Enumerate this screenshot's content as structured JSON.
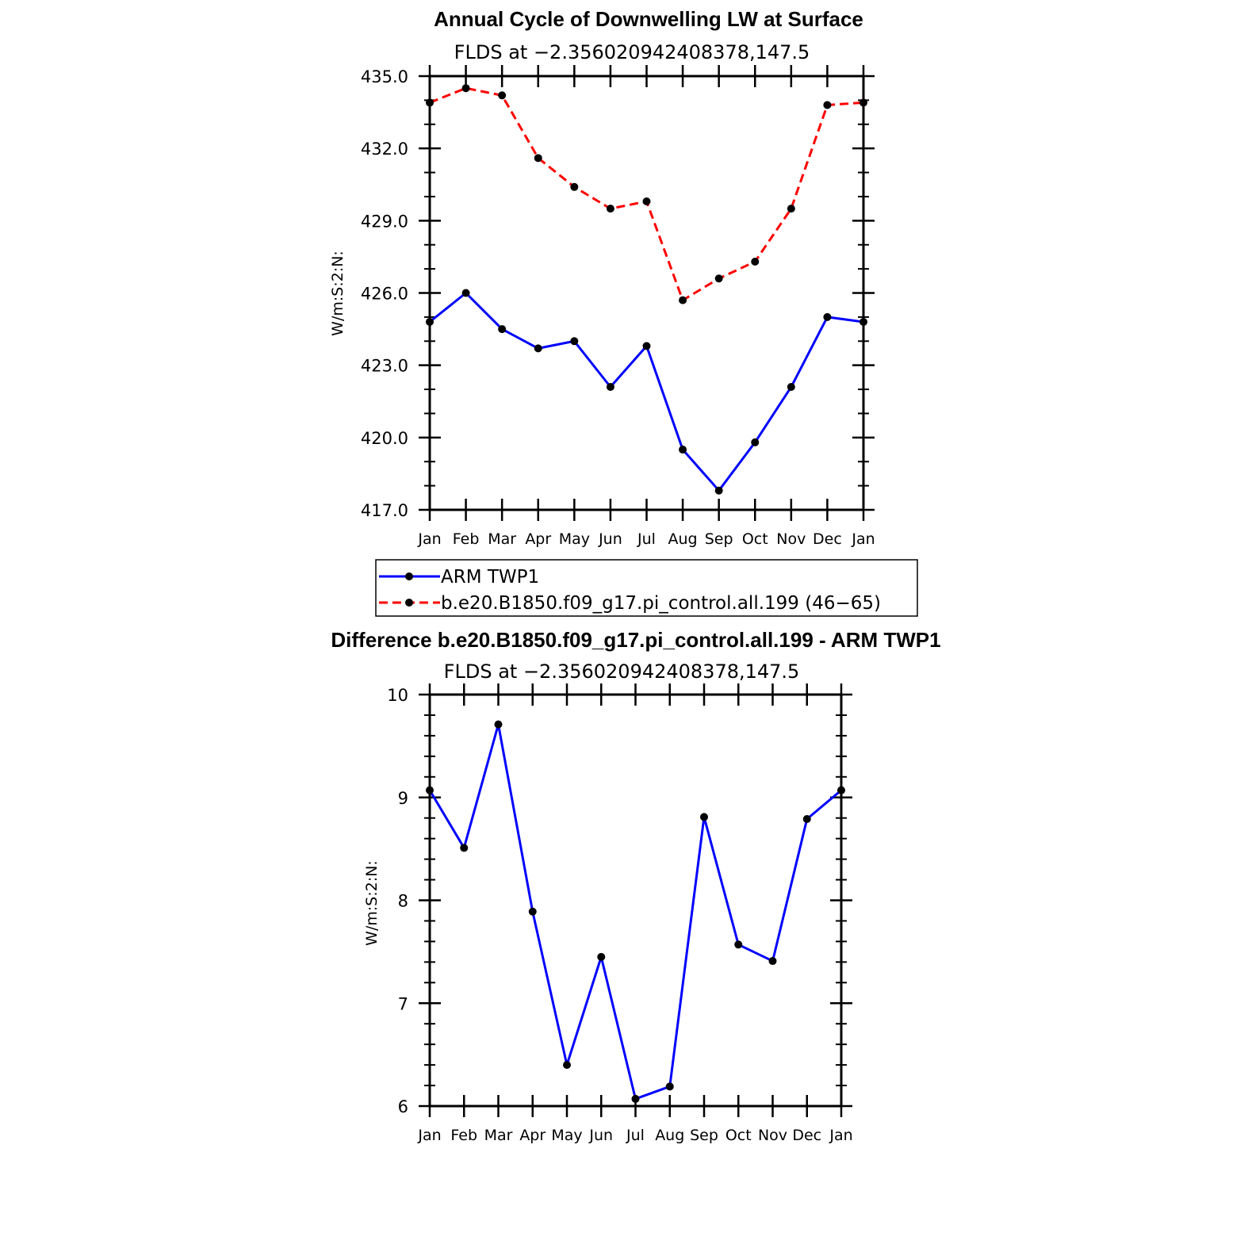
{
  "chart_data": [
    {
      "type": "line",
      "title": "Annual Cycle of Downwelling LW at Surface",
      "subtitle": "FLDS at −2.356020942408378,147.5",
      "ylabel": "W/m:S:2:N:",
      "categories": [
        "Jan",
        "Feb",
        "Mar",
        "Apr",
        "May",
        "Jun",
        "Jul",
        "Aug",
        "Sep",
        "Oct",
        "Nov",
        "Dec",
        "Jan"
      ],
      "ylim": [
        417.0,
        435.0
      ],
      "yticks": [
        "417.0",
        "420.0",
        "423.0",
        "426.0",
        "429.0",
        "432.0",
        "435.0"
      ],
      "series": [
        {
          "name": "ARM TWP1",
          "color": "#0000ff",
          "dash": "solid",
          "values": [
            424.8,
            426.0,
            424.5,
            423.7,
            424.0,
            422.1,
            423.8,
            419.5,
            417.8,
            419.8,
            422.1,
            425.0,
            424.8
          ]
        },
        {
          "name": "b.e20.B1850.f09_g17.pi_control.all.199 (46−65)",
          "color": "#ff0000",
          "dash": "dashed",
          "values": [
            433.9,
            434.5,
            434.2,
            431.6,
            430.4,
            429.5,
            429.8,
            425.7,
            426.6,
            427.3,
            429.5,
            433.8,
            433.9
          ]
        }
      ]
    },
    {
      "type": "line",
      "title": "Difference b.e20.B1850.f09_g17.pi_control.all.199 - ARM TWP1",
      "subtitle": "FLDS at −2.356020942408378,147.5",
      "ylabel": "W/m:S:2:N:",
      "categories": [
        "Jan",
        "Feb",
        "Mar",
        "Apr",
        "May",
        "Jun",
        "Jul",
        "Aug",
        "Sep",
        "Oct",
        "Nov",
        "Dec",
        "Jan"
      ],
      "ylim": [
        6,
        10
      ],
      "yticks": [
        "6",
        "7",
        "8",
        "9",
        "10"
      ],
      "series": [
        {
          "color": "#0000ff",
          "dash": "solid",
          "values": [
            9.07,
            8.51,
            9.71,
            7.89,
            6.4,
            7.45,
            6.07,
            6.19,
            8.81,
            7.57,
            7.41,
            8.79,
            9.07
          ]
        }
      ]
    }
  ]
}
